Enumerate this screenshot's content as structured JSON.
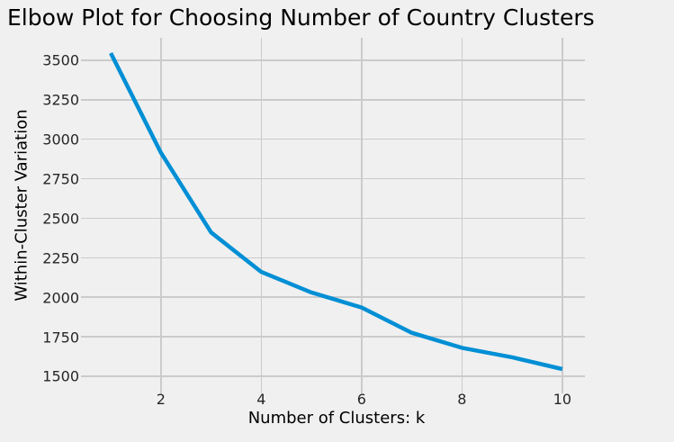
{
  "chart_data": {
    "type": "line",
    "title": "Elbow Plot for Choosing Number of Country Clusters",
    "xlabel": "Number of Clusters: k",
    "ylabel": "Within-Cluster Variation",
    "x": [
      1,
      2,
      3,
      4,
      5,
      6,
      7,
      8,
      9,
      10
    ],
    "y": [
      3545,
      2915,
      2410,
      2160,
      2030,
      1935,
      1775,
      1680,
      1620,
      1545
    ],
    "series_name": "within-cluster-variation",
    "x_ticks": [
      2,
      4,
      6,
      8,
      10
    ],
    "y_ticks": [
      1500,
      1750,
      2000,
      2250,
      2500,
      2750,
      3000,
      3250,
      3500
    ],
    "xlim": [
      0.55,
      10.45
    ],
    "ylim": [
      1437,
      3642
    ],
    "grid": true,
    "legend_position": "none",
    "line_color": "#008fd5",
    "grid_color": "#cbcbcb",
    "background_color": "#f0f0f0",
    "tick_label_color": "#262626",
    "text_color": "#000000"
  }
}
